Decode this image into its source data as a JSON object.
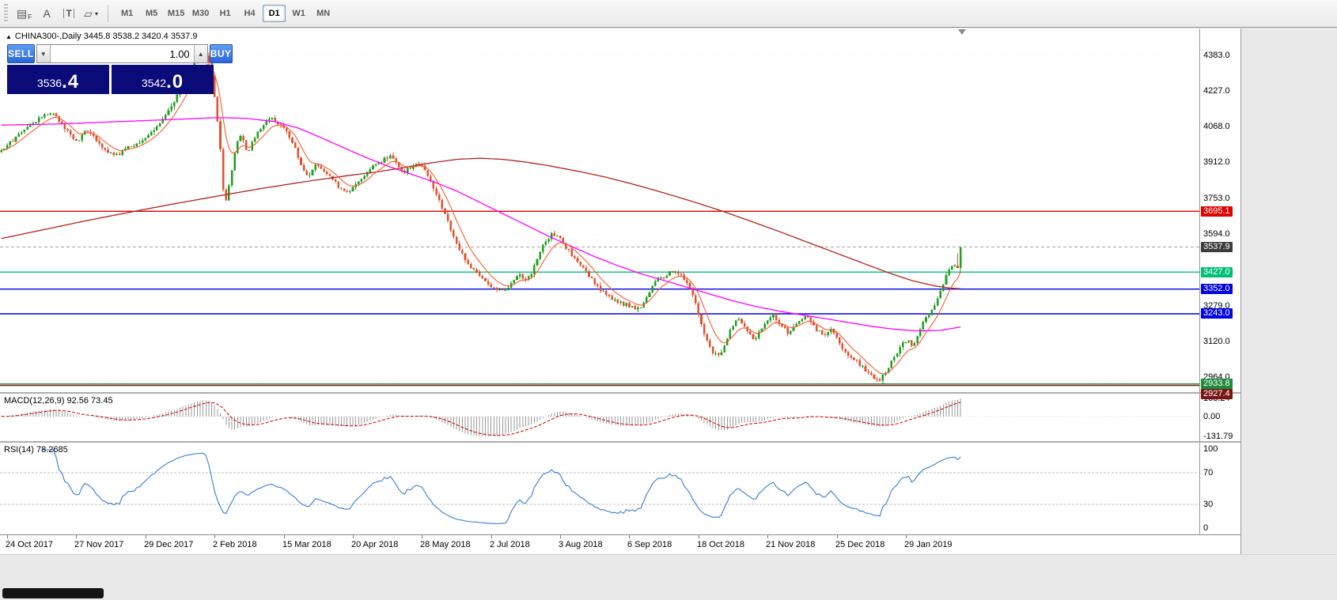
{
  "window": {
    "bg": "#e9e9e9"
  },
  "toolbar": {
    "icons": [
      {
        "name": "line-studies-icon",
        "glyph": "▤",
        "sub": "F"
      },
      {
        "name": "text-label-icon",
        "glyph": "A"
      },
      {
        "name": "text-tool-icon",
        "glyph": "T",
        "boxed": true
      },
      {
        "name": "shapes-dropdown-icon",
        "glyph": "▱",
        "caret": "▾"
      }
    ],
    "timeframes": [
      {
        "label": "M1",
        "active": false
      },
      {
        "label": "M5",
        "active": false
      },
      {
        "label": "M15",
        "active": false
      },
      {
        "label": "M30",
        "active": false
      },
      {
        "label": "H1",
        "active": false
      },
      {
        "label": "H4",
        "active": false
      },
      {
        "label": "D1",
        "active": true
      },
      {
        "label": "W1",
        "active": false
      },
      {
        "label": "MN",
        "active": false
      }
    ]
  },
  "symbol_header": {
    "marker": "▲",
    "text": "CHINA300-,Daily 3445.8 3538.2 3420.4 3537.9"
  },
  "trade_panel": {
    "sell_label": "SELL",
    "buy_label": "BUY",
    "volume": "1.00",
    "spin_down": "▼",
    "spin_up": "▲",
    "sell_price_main": "3536",
    "sell_price_big": ".4",
    "buy_price_main": "3542",
    "buy_price_big": ".0"
  },
  "indicators": {
    "macd_label": "MACD(12,26,9) 92.56 73.45",
    "macd_scale": [
      "103.24",
      "0.00",
      "-131.79"
    ],
    "rsi_label": "RSI(14) 78.2685",
    "rsi_scale": [
      "100",
      "70",
      "30",
      "0"
    ]
  },
  "time_axis": {
    "labels": [
      {
        "text": "24 Oct 2017",
        "day": 2
      },
      {
        "text": "27 Nov 2017",
        "day": 26
      },
      {
        "text": "29 Dec 2017",
        "day": 50
      },
      {
        "text": "2 Feb 2018",
        "day": 74
      },
      {
        "text": "15 Mar 2018",
        "day": 98
      },
      {
        "text": "20 Apr 2018",
        "day": 122
      },
      {
        "text": "28 May 2018",
        "day": 146
      },
      {
        "text": "2 Jul 2018",
        "day": 170
      },
      {
        "text": "3 Aug 2018",
        "day": 194
      },
      {
        "text": "6 Sep 2018",
        "day": 218
      },
      {
        "text": "18 Oct 2018",
        "day": 242
      },
      {
        "text": "21 Nov 2018",
        "day": 266
      },
      {
        "text": "25 Dec 2018",
        "day": 290
      },
      {
        "text": "29 Jan 2019",
        "day": 314
      }
    ]
  },
  "chart_data": {
    "type": "candlestick",
    "symbol": "CHINA300-",
    "timeframe": "Daily",
    "last_bar": {
      "open": 3445.8,
      "high": 3538.2,
      "low": 3420.4,
      "close": 3537.9
    },
    "current_price": 3537.9,
    "bid": 3536.4,
    "ask": 3542.0,
    "days": 334,
    "plot_span": 1216,
    "seed": 20190225,
    "colors": {
      "up": "#1f9e20",
      "down": "#e0512c",
      "grid": "#f0f0f0",
      "last_price_line": "#a0a0a0"
    },
    "price_axis": {
      "min": 2898,
      "max": 4501,
      "ticks": [
        "4383.0",
        "4227.0",
        "4068.0",
        "3912.0",
        "3753.0",
        "3594.0",
        "3279.0",
        "3120.0",
        "2964.0"
      ]
    },
    "current_price_badge": {
      "label": "3537.9",
      "color": "#3c3c3c"
    },
    "hlines": [
      {
        "value": 3695.1,
        "color": "#e00000",
        "badge": "3695.1"
      },
      {
        "value": 3427.0,
        "color": "#00c078",
        "badge": "3427.0"
      },
      {
        "value": 3352.0,
        "color": "#0000e6",
        "badge": "3352.0"
      },
      {
        "value": 3243.0,
        "color": "#0000e6",
        "badge": "3243.0"
      },
      {
        "value": 2933.8,
        "color": "#1f8a3c",
        "badge": "2933.8"
      },
      {
        "value": 2927.4,
        "color": "#7a1414",
        "badge": "2927.4"
      }
    ],
    "price_path": [
      [
        0,
        3955
      ],
      [
        3,
        3990
      ],
      [
        6,
        4030
      ],
      [
        10,
        4070
      ],
      [
        14,
        4105
      ],
      [
        18,
        4135
      ],
      [
        21,
        4090
      ],
      [
        24,
        4040
      ],
      [
        27,
        4000
      ],
      [
        30,
        4060
      ],
      [
        33,
        4020
      ],
      [
        37,
        3960
      ],
      [
        41,
        3945
      ],
      [
        45,
        3985
      ],
      [
        49,
        3995
      ],
      [
        53,
        4050
      ],
      [
        57,
        4110
      ],
      [
        61,
        4190
      ],
      [
        65,
        4290
      ],
      [
        68,
        4360
      ],
      [
        71,
        4400
      ],
      [
        73,
        4340
      ],
      [
        75,
        4170
      ],
      [
        77,
        3910
      ],
      [
        78,
        3700
      ],
      [
        80,
        3830
      ],
      [
        82,
        3990
      ],
      [
        84,
        4030
      ],
      [
        86,
        3950
      ],
      [
        88,
        4010
      ],
      [
        91,
        4070
      ],
      [
        94,
        4110
      ],
      [
        97,
        4080
      ],
      [
        100,
        4040
      ],
      [
        103,
        3960
      ],
      [
        105,
        3880
      ],
      [
        107,
        3840
      ],
      [
        110,
        3905
      ],
      [
        113,
        3870
      ],
      [
        116,
        3830
      ],
      [
        118,
        3800
      ],
      [
        121,
        3770
      ],
      [
        125,
        3830
      ],
      [
        130,
        3900
      ],
      [
        136,
        3940
      ],
      [
        140,
        3870
      ],
      [
        144,
        3900
      ],
      [
        147,
        3890
      ],
      [
        150,
        3820
      ],
      [
        154,
        3700
      ],
      [
        158,
        3570
      ],
      [
        162,
        3470
      ],
      [
        166,
        3420
      ],
      [
        170,
        3370
      ],
      [
        174,
        3340
      ],
      [
        177,
        3360
      ],
      [
        180,
        3420
      ],
      [
        183,
        3390
      ],
      [
        186,
        3460
      ],
      [
        189,
        3560
      ],
      [
        192,
        3600
      ],
      [
        195,
        3565
      ],
      [
        198,
        3510
      ],
      [
        202,
        3450
      ],
      [
        206,
        3390
      ],
      [
        210,
        3330
      ],
      [
        214,
        3300
      ],
      [
        218,
        3280
      ],
      [
        222,
        3265
      ],
      [
        225,
        3330
      ],
      [
        228,
        3390
      ],
      [
        232,
        3420
      ],
      [
        235,
        3430
      ],
      [
        238,
        3390
      ],
      [
        241,
        3320
      ],
      [
        244,
        3180
      ],
      [
        247,
        3080
      ],
      [
        250,
        3060
      ],
      [
        253,
        3150
      ],
      [
        256,
        3230
      ],
      [
        259,
        3180
      ],
      [
        262,
        3130
      ],
      [
        265,
        3190
      ],
      [
        268,
        3240
      ],
      [
        271,
        3200
      ],
      [
        274,
        3155
      ],
      [
        277,
        3210
      ],
      [
        280,
        3240
      ],
      [
        283,
        3180
      ],
      [
        286,
        3150
      ],
      [
        289,
        3180
      ],
      [
        291,
        3120
      ],
      [
        294,
        3070
      ],
      [
        297,
        3040
      ],
      [
        300,
        3000
      ],
      [
        303,
        2965
      ],
      [
        305,
        2945
      ],
      [
        308,
        2990
      ],
      [
        311,
        3060
      ],
      [
        313,
        3105
      ],
      [
        315,
        3130
      ],
      [
        317,
        3100
      ],
      [
        319,
        3160
      ],
      [
        321,
        3210
      ],
      [
        323,
        3250
      ],
      [
        325,
        3290
      ],
      [
        327,
        3355
      ],
      [
        329,
        3420
      ],
      [
        331,
        3462
      ],
      [
        332,
        3448
      ],
      [
        333,
        3538
      ]
    ],
    "ma_fast": {
      "period": 8,
      "color": "#ff5a30"
    },
    "ma_mid": {
      "color": "#ff00ff",
      "anchors": [
        [
          0,
          4075
        ],
        [
          20,
          4080
        ],
        [
          40,
          4090
        ],
        [
          60,
          4100
        ],
        [
          75,
          4108
        ],
        [
          85,
          4105
        ],
        [
          95,
          4090
        ],
        [
          103,
          4062
        ],
        [
          110,
          4025
        ],
        [
          118,
          3980
        ],
        [
          126,
          3935
        ],
        [
          134,
          3895
        ],
        [
          142,
          3860
        ],
        [
          150,
          3825
        ],
        [
          158,
          3785
        ],
        [
          166,
          3735
        ],
        [
          174,
          3685
        ],
        [
          182,
          3635
        ],
        [
          190,
          3585
        ],
        [
          198,
          3540
        ],
        [
          206,
          3495
        ],
        [
          214,
          3455
        ],
        [
          222,
          3420
        ],
        [
          230,
          3390
        ],
        [
          238,
          3360
        ],
        [
          246,
          3330
        ],
        [
          254,
          3300
        ],
        [
          262,
          3275
        ],
        [
          270,
          3255
        ],
        [
          278,
          3238
        ],
        [
          286,
          3222
        ],
        [
          294,
          3205
        ],
        [
          302,
          3188
        ],
        [
          310,
          3175
        ],
        [
          318,
          3168
        ],
        [
          326,
          3170
        ],
        [
          333,
          3185
        ]
      ]
    },
    "ma_slow": {
      "color": "#b22222",
      "anchors": [
        [
          0,
          3575
        ],
        [
          15,
          3615
        ],
        [
          30,
          3655
        ],
        [
          45,
          3692
        ],
        [
          60,
          3728
        ],
        [
          75,
          3762
        ],
        [
          90,
          3795
        ],
        [
          105,
          3825
        ],
        [
          120,
          3852
        ],
        [
          130,
          3868
        ],
        [
          140,
          3888
        ],
        [
          150,
          3910
        ],
        [
          158,
          3924
        ],
        [
          166,
          3929
        ],
        [
          174,
          3924
        ],
        [
          182,
          3912
        ],
        [
          190,
          3896
        ],
        [
          200,
          3872
        ],
        [
          210,
          3845
        ],
        [
          220,
          3812
        ],
        [
          230,
          3776
        ],
        [
          240,
          3738
        ],
        [
          250,
          3697
        ],
        [
          260,
          3652
        ],
        [
          270,
          3606
        ],
        [
          280,
          3558
        ],
        [
          290,
          3510
        ],
        [
          300,
          3462
        ],
        [
          308,
          3424
        ],
        [
          316,
          3390
        ],
        [
          324,
          3366
        ],
        [
          330,
          3356
        ],
        [
          333,
          3354
        ]
      ]
    },
    "macd": {
      "fast": 12,
      "slow": 26,
      "signal": 9,
      "hist_color": "#9a9a9a",
      "signal_color": "#cc0000",
      "axis_max": 103.24,
      "axis_min": -131.79
    },
    "rsi": {
      "period": 14,
      "color": "#3a7bd5",
      "levels": [
        70,
        30
      ],
      "level_color": "#bdbdbd"
    }
  }
}
